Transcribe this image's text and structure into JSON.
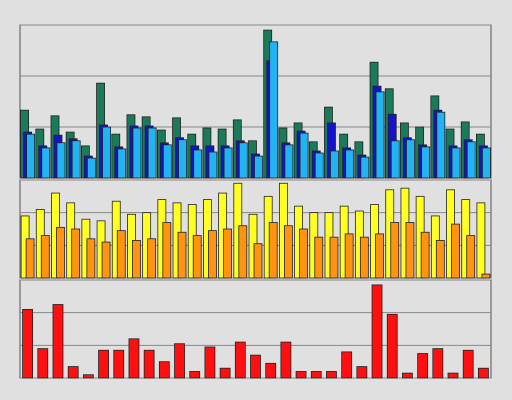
{
  "chart_data": [
    {
      "type": "bar",
      "ylim": [
        0,
        3
      ],
      "yticks": [
        0,
        1,
        2,
        3
      ],
      "grid": true,
      "categories": [
        null,
        null,
        null,
        null,
        null,
        null,
        null,
        null,
        null,
        null,
        null,
        null,
        null,
        null,
        null,
        null,
        null,
        null,
        null,
        null,
        null,
        null,
        null,
        null,
        null,
        null,
        null,
        null,
        null,
        null,
        null
      ],
      "series": [
        {
          "color": "#1a7a5a",
          "values": [
            1.33,
            0.96,
            1.22,
            0.9,
            0.63,
            1.86,
            0.86,
            1.24,
            1.2,
            0.94,
            1.18,
            0.86,
            0.98,
            0.96,
            1.14,
            0.73,
            2.9,
            0.98,
            1.08,
            0.71,
            1.39,
            0.86,
            0.71,
            2.27,
            1.75,
            1.08,
            1.0,
            1.61,
            0.96,
            1.1,
            0.86
          ]
        },
        {
          "color": "#1414c8",
          "values": [
            0.9,
            0.63,
            0.84,
            0.77,
            0.43,
            1.04,
            0.61,
            1.02,
            1.02,
            0.69,
            0.79,
            0.63,
            0.63,
            0.63,
            0.73,
            0.47,
            2.3,
            0.69,
            0.92,
            0.53,
            1.08,
            0.59,
            0.45,
            1.8,
            1.25,
            0.79,
            0.65,
            1.33,
            0.63,
            0.75,
            0.63
          ]
        },
        {
          "color": "#22b4f2",
          "values": [
            0.86,
            0.59,
            0.69,
            0.73,
            0.39,
            1.0,
            0.57,
            0.98,
            0.98,
            0.65,
            0.75,
            0.55,
            0.51,
            0.59,
            0.69,
            0.43,
            2.67,
            0.65,
            0.88,
            0.49,
            0.53,
            0.55,
            0.41,
            1.69,
            0.73,
            0.75,
            0.61,
            1.29,
            0.59,
            0.71,
            0.59
          ]
        }
      ]
    },
    {
      "type": "bar",
      "ylim": [
        0,
        3
      ],
      "yticks": [
        0,
        1,
        2,
        3
      ],
      "grid": true,
      "categories": [
        null,
        null,
        null,
        null,
        null,
        null,
        null,
        null,
        null,
        null,
        null,
        null,
        null,
        null,
        null,
        null,
        null,
        null,
        null,
        null,
        null,
        null,
        null,
        null,
        null,
        null,
        null,
        null,
        null,
        null,
        null
      ],
      "series": [
        {
          "color": "#ffff22",
          "values": [
            1.9,
            2.1,
            2.6,
            2.3,
            1.8,
            1.75,
            2.35,
            1.95,
            2.0,
            2.4,
            2.3,
            2.25,
            2.4,
            2.6,
            2.9,
            1.95,
            2.5,
            2.9,
            2.2,
            2.0,
            2.0,
            2.2,
            2.05,
            2.25,
            2.7,
            2.75,
            2.5,
            1.9,
            2.7,
            2.4,
            2.3
          ]
        },
        {
          "color": "#ff9412",
          "values": [
            1.2,
            1.3,
            1.55,
            1.5,
            1.2,
            1.1,
            1.45,
            1.15,
            1.2,
            1.7,
            1.4,
            1.3,
            1.45,
            1.5,
            1.6,
            1.05,
            1.7,
            1.6,
            1.5,
            1.25,
            1.25,
            1.35,
            1.25,
            1.35,
            1.7,
            1.7,
            1.4,
            1.15,
            1.65,
            1.3,
            0.12
          ]
        }
      ]
    },
    {
      "type": "bar",
      "ylim": [
        0,
        3
      ],
      "yticks": [
        0,
        1,
        2,
        3
      ],
      "grid": true,
      "categories": [
        null,
        null,
        null,
        null,
        null,
        null,
        null,
        null,
        null,
        null,
        null,
        null,
        null,
        null,
        null,
        null,
        null,
        null,
        null,
        null,
        null,
        null,
        null,
        null,
        null,
        null,
        null,
        null,
        null,
        null,
        null
      ],
      "series": [
        {
          "color": "#ff1010",
          "values": [
            2.1,
            0.9,
            2.25,
            0.35,
            0.1,
            0.85,
            0.85,
            1.2,
            0.85,
            0.5,
            1.05,
            0.2,
            0.95,
            0.3,
            1.1,
            0.7,
            0.45,
            1.1,
            0.2,
            0.2,
            0.2,
            0.8,
            0.35,
            2.85,
            1.95,
            0.15,
            0.75,
            0.9,
            0.15,
            0.85,
            0.3
          ]
        }
      ]
    }
  ]
}
